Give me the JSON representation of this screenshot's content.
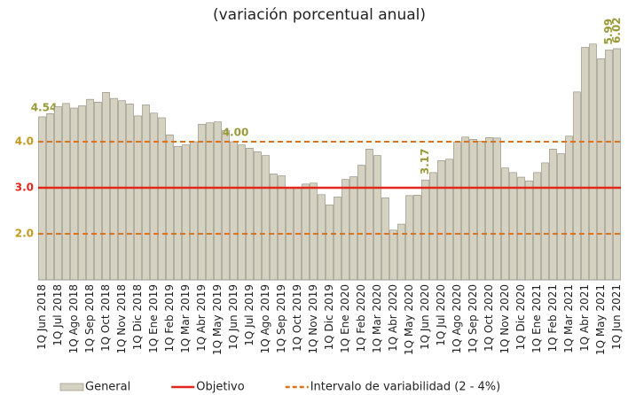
{
  "chart_data": {
    "type": "bar",
    "title": "(variación porcentual anual)",
    "categories": [
      "1Q Jun 2018",
      null,
      "1Q Jul 2018",
      null,
      "1Q Ago 2018",
      null,
      "1Q Sep 2018",
      null,
      "1Q Oct 2018",
      null,
      "1Q Nov 2018",
      null,
      "1Q Dic 2018",
      null,
      "1Q Ene 2019",
      null,
      "1Q Feb 2019",
      null,
      "1Q Mar 2019",
      null,
      "1Q Abr 2019",
      null,
      "1Q May 2019",
      null,
      "1Q Jun 2019",
      null,
      "1Q Jul 2019",
      null,
      "1Q Ago 2019",
      null,
      "1Q Sep 2019",
      null,
      "1Q Oct 2019",
      null,
      "1Q Nov 2019",
      null,
      "1Q Dic 2019",
      null,
      "1Q Ene 2020",
      null,
      "1Q Feb 2020",
      null,
      "1Q Mar 2020",
      null,
      "1Q Abr 2020",
      null,
      "1Q May 2020",
      null,
      "1Q Jun 2020",
      null,
      "1Q Jul 2020",
      null,
      "1Q Ago 2020",
      null,
      "1Q Sep 2020",
      null,
      "1Q Oct 2020",
      null,
      "1Q Nov 2020",
      null,
      "1Q Dic 2020",
      null,
      "1Q Ene 2021",
      null,
      "1Q Feb 2021",
      null,
      "1Q Mar 2021",
      null,
      "1Q Abr 2021",
      null,
      "1Q May 2021",
      null,
      "1Q Jun 2021"
    ],
    "series": [
      {
        "name": "General",
        "color": "#d6d2c2",
        "values": [
          4.54,
          4.61,
          4.76,
          4.83,
          4.73,
          4.78,
          4.92,
          4.86,
          5.07,
          4.94,
          4.89,
          4.82,
          4.56,
          4.8,
          4.62,
          4.52,
          4.15,
          3.9,
          3.93,
          4.0,
          4.38,
          4.41,
          4.43,
          4.24,
          4.0,
          3.93,
          3.86,
          3.78,
          3.7,
          3.3,
          3.26,
          3.01,
          3.0,
          3.08,
          3.1,
          2.85,
          2.63,
          2.8,
          3.18,
          3.24,
          3.49,
          3.84,
          3.7,
          2.78,
          2.08,
          2.21,
          2.83,
          2.84,
          3.17,
          3.33,
          3.59,
          3.62,
          3.99,
          4.1,
          4.05,
          4.01,
          4.09,
          4.08,
          3.43,
          3.33,
          3.23,
          3.15,
          3.33,
          3.54,
          3.84,
          3.74,
          4.12,
          5.08,
          6.05,
          6.12,
          5.8,
          5.99,
          6.02
        ],
        "value_labels": [
          "4.54",
          null,
          null,
          null,
          null,
          null,
          null,
          null,
          null,
          null,
          null,
          null,
          null,
          null,
          null,
          null,
          null,
          null,
          null,
          null,
          null,
          null,
          null,
          null,
          "4.00",
          null,
          null,
          null,
          null,
          null,
          null,
          null,
          null,
          null,
          null,
          null,
          null,
          null,
          null,
          null,
          null,
          null,
          null,
          null,
          null,
          null,
          null,
          null,
          "3.17",
          null,
          null,
          null,
          null,
          null,
          null,
          null,
          null,
          null,
          null,
          null,
          null,
          null,
          null,
          null,
          null,
          null,
          null,
          null,
          null,
          null,
          null,
          "5.99",
          "6.02"
        ]
      }
    ],
    "reference_lines": [
      {
        "name": "Objetivo",
        "color": "#e3261c",
        "style": "solid",
        "values": [
          3
        ]
      },
      {
        "name": "Intervalo de variabilidad (2 - 4%)",
        "color": "#d9731f",
        "style": "dashed",
        "values": [
          2,
          4
        ]
      }
    ],
    "ylim": [
      1,
      6.5
    ],
    "yticks": [
      {
        "value": 2,
        "label": "2.0"
      },
      {
        "value": 3,
        "label": "3.0"
      },
      {
        "value": 4,
        "label": "4.0"
      }
    ],
    "ytick_colors": [
      "#c49a1e",
      "#e3261c",
      "#c49a1e"
    ],
    "value_label_color": "#9a9a3a"
  }
}
